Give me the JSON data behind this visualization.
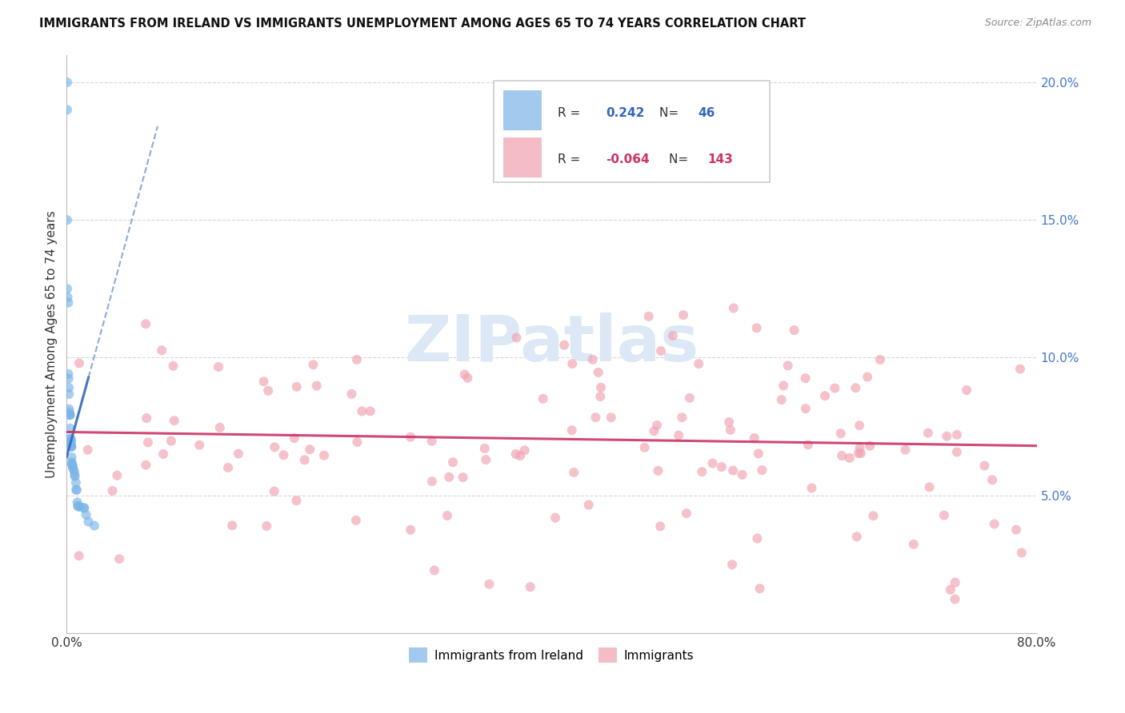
{
  "title": "IMMIGRANTS FROM IRELAND VS IMMIGRANTS UNEMPLOYMENT AMONG AGES 65 TO 74 YEARS CORRELATION CHART",
  "source": "Source: ZipAtlas.com",
  "ylabel": "Unemployment Among Ages 65 to 74 years",
  "xmin": 0.0,
  "xmax": 0.8,
  "ymin": 0.0,
  "ymax": 0.21,
  "yticks": [
    0.05,
    0.1,
    0.15,
    0.2
  ],
  "ytick_labels": [
    "5.0%",
    "10.0%",
    "15.0%",
    "20.0%"
  ],
  "xticks": [
    0.0,
    0.1,
    0.2,
    0.3,
    0.4,
    0.5,
    0.6,
    0.7,
    0.8
  ],
  "blue_R": 0.242,
  "blue_N": 46,
  "pink_R": -0.064,
  "pink_N": 143,
  "blue_color": "#7ab4e8",
  "pink_color": "#f0a0b0",
  "blue_line_color": "#3366bb",
  "pink_line_color": "#cc3366",
  "ytick_color": "#4477cc",
  "xtick_color": "#333333",
  "watermark_text": "ZIPatlas",
  "watermark_color": "#dce8f5",
  "blue_legend_label": "Immigrants from Ireland",
  "pink_legend_label": "Immigrants"
}
